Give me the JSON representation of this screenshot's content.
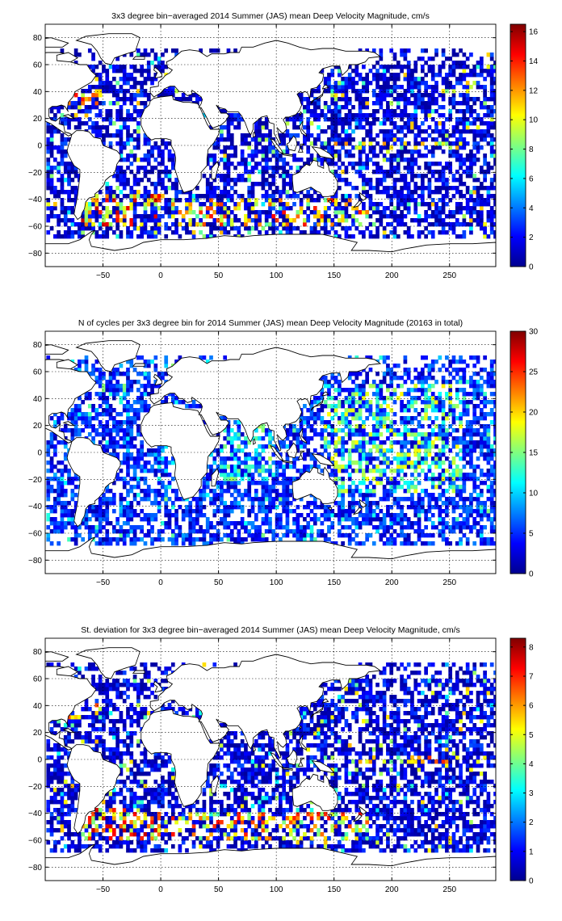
{
  "panels": [
    {
      "title": "3x3 degree bin−averaged 2014 Summer (JAS) mean Deep Velocity Magnitude, cm/s",
      "colorbar_ticks": [
        "0",
        "2",
        "4",
        "6",
        "8",
        "10",
        "12",
        "14",
        "16"
      ]
    },
    {
      "title": "N of cycles per 3x3 degree bin for 2014 Summer (JAS) mean Deep Velocity Magnitude (20163 in total)",
      "colorbar_ticks": [
        "0",
        "5",
        "10",
        "15",
        "20",
        "25",
        "30"
      ]
    },
    {
      "title": "St. deviation for 3x3 degree bin−averaged 2014 Summer (JAS) mean Deep Velocity Magnitude, cm/s",
      "colorbar_ticks": [
        "0",
        "1",
        "2",
        "3",
        "4",
        "5",
        "6",
        "7",
        "8"
      ]
    }
  ],
  "x_ticks": [
    "−50",
    "0",
    "50",
    "100",
    "150",
    "200",
    "250"
  ],
  "y_ticks": [
    "80",
    "60",
    "40",
    "20",
    "0",
    "−20",
    "−40",
    "−60",
    "−80"
  ],
  "chart_data": [
    {
      "type": "heatmap",
      "title": "3x3 degree bin−averaged 2014 Summer (JAS) mean Deep Velocity Magnitude, cm/s",
      "xlabel": "",
      "ylabel": "",
      "xlim": [
        -100,
        290
      ],
      "ylim": [
        -90,
        90
      ],
      "bin_size_deg": 3,
      "color_range": [
        0,
        16.5
      ],
      "colormap": "jet",
      "grid": true,
      "colorbar": "right",
      "x_ticks": [
        -50,
        0,
        50,
        100,
        150,
        200,
        250
      ],
      "y_ticks": [
        -80,
        -60,
        -40,
        -20,
        0,
        20,
        40,
        60,
        80
      ],
      "colorbar_ticks": [
        0,
        2,
        4,
        6,
        8,
        10,
        12,
        14,
        16
      ],
      "high_value_regions": [
        {
          "lon": [
            -70,
            0
          ],
          "lat": [
            -60,
            -35
          ],
          "value": 13
        },
        {
          "lon": [
            10,
            180
          ],
          "lat": [
            -60,
            -40
          ],
          "value": 12
        },
        {
          "lon": [
            140,
            260
          ],
          "lat": [
            -2,
            4
          ],
          "value": 11
        },
        {
          "lon": [
            -80,
            -50
          ],
          "lat": [
            30,
            42
          ],
          "value": 12
        },
        {
          "lon": [
            140,
            160
          ],
          "lat": [
            32,
            40
          ],
          "value": 11
        }
      ]
    },
    {
      "type": "heatmap",
      "title": "N of cycles per 3x3 degree bin for 2014 Summer (JAS) mean Deep Velocity Magnitude (20163 in total)",
      "xlabel": "",
      "ylabel": "",
      "xlim": [
        -100,
        290
      ],
      "ylim": [
        -90,
        90
      ],
      "bin_size_deg": 3,
      "color_range": [
        0,
        30
      ],
      "colormap": "jet",
      "grid": true,
      "colorbar": "right",
      "x_ticks": [
        -50,
        0,
        50,
        100,
        150,
        200,
        250
      ],
      "y_ticks": [
        -80,
        -60,
        -40,
        -20,
        0,
        20,
        40,
        60,
        80
      ],
      "colorbar_ticks": [
        0,
        5,
        10,
        15,
        20,
        25,
        30
      ],
      "total_cycles": 20163,
      "high_value_regions": [
        {
          "lon": [
            140,
            260
          ],
          "lat": [
            -30,
            50
          ],
          "value": 16
        },
        {
          "lon": [
            50,
            100
          ],
          "lat": [
            -20,
            20
          ],
          "value": 14
        }
      ]
    },
    {
      "type": "heatmap",
      "title": "St. deviation for 3x3 degree bin−averaged 2014 Summer (JAS) mean Deep Velocity Magnitude, cm/s",
      "xlabel": "",
      "ylabel": "",
      "xlim": [
        -100,
        290
      ],
      "ylim": [
        -90,
        90
      ],
      "bin_size_deg": 3,
      "color_range": [
        0,
        8.3
      ],
      "colormap": "jet",
      "grid": true,
      "colorbar": "right",
      "x_ticks": [
        -50,
        0,
        50,
        100,
        150,
        200,
        250
      ],
      "y_ticks": [
        -80,
        -60,
        -40,
        -20,
        0,
        20,
        40,
        60,
        80
      ],
      "colorbar_ticks": [
        0,
        1,
        2,
        3,
        4,
        5,
        6,
        7,
        8
      ],
      "high_value_regions": [
        {
          "lon": [
            -70,
            0
          ],
          "lat": [
            -60,
            -35
          ],
          "value": 6.5
        },
        {
          "lon": [
            10,
            180
          ],
          "lat": [
            -60,
            -40
          ],
          "value": 6
        },
        {
          "lon": [
            140,
            260
          ],
          "lat": [
            -2,
            4
          ],
          "value": 6
        },
        {
          "lon": [
            -80,
            -50
          ],
          "lat": [
            30,
            42
          ],
          "value": 6
        }
      ]
    }
  ]
}
